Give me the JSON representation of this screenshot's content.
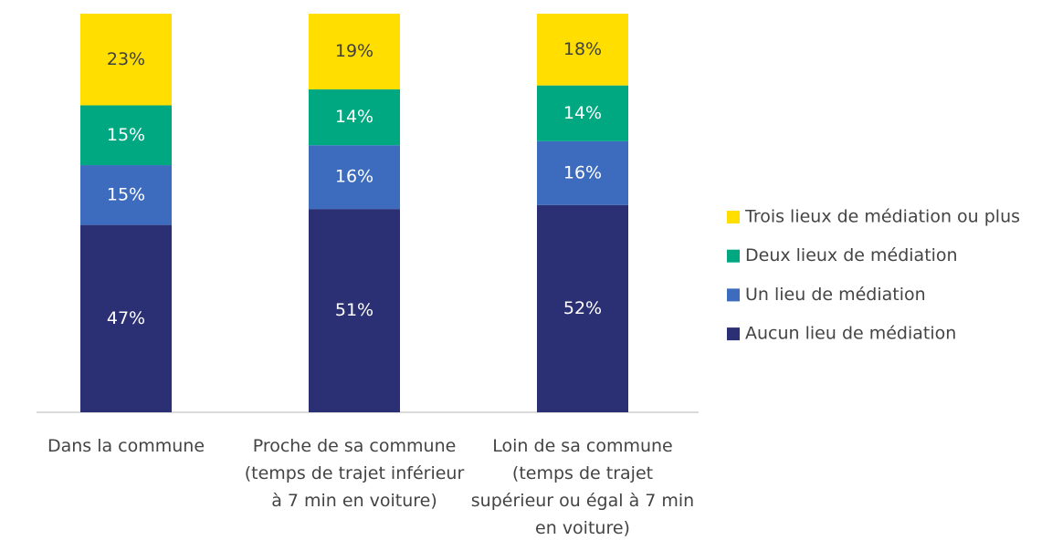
{
  "chart_data": {
    "type": "stacked_bar",
    "categories": [
      "Dans la commune",
      "Proche de sa commune (temps de trajet inférieur à 7 min en voiture)",
      "Loin de sa commune (temps de trajet supérieur ou égal à 7 min en voiture)"
    ],
    "series": [
      {
        "name": "Aucun lieu de médiation",
        "color": "#2b2f73",
        "label_color": "#ffffff",
        "values": [
          47,
          51,
          52
        ],
        "value_labels": [
          "47%",
          "51%",
          "52%"
        ]
      },
      {
        "name": "Un lieu de médiation",
        "color": "#3d6bbd",
        "label_color": "#ffffff",
        "values": [
          15,
          16,
          16
        ],
        "value_labels": [
          "15%",
          "16%",
          "16%"
        ]
      },
      {
        "name": "Deux lieux de médiation",
        "color": "#00a882",
        "label_color": "#ffffff",
        "values": [
          15,
          14,
          14
        ],
        "value_labels": [
          "15%",
          "14%",
          "14%"
        ]
      },
      {
        "name": "Trois lieux de médiation ou plus",
        "color": "#ffde00",
        "label_color": "#404040",
        "values": [
          23,
          19,
          18
        ],
        "value_labels": [
          "23%",
          "19%",
          "18%"
        ]
      }
    ],
    "ylim": [
      0,
      100
    ],
    "legend": "right"
  }
}
